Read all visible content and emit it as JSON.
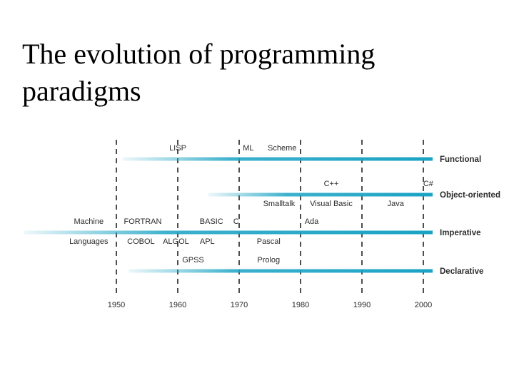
{
  "title": "The evolution of programming paradigms",
  "colors": {
    "timeline": "#1aa3c4",
    "dashed_line": "#222222",
    "text": "#2b2b2b",
    "background": "#ffffff"
  },
  "years": [
    "1950",
    "1960",
    "1970",
    "1980",
    "1990",
    "2000"
  ],
  "paradigms": [
    {
      "key": "functional",
      "label": "Functional",
      "start_year": 1951
    },
    {
      "key": "object-oriented",
      "label": "Object-oriented",
      "start_year": 1965
    },
    {
      "key": "imperative",
      "label": "Imperative",
      "start_year": 1935
    },
    {
      "key": "declarative",
      "label": "Declarative",
      "start_year": 1952
    }
  ],
  "languages": [
    {
      "name": "LISP",
      "year": 1960,
      "paradigm": "functional",
      "side": "above"
    },
    {
      "name": "ML",
      "year": 1971.5,
      "paradigm": "functional",
      "side": "above"
    },
    {
      "name": "Scheme",
      "year": 1977,
      "paradigm": "functional",
      "side": "above"
    },
    {
      "name": "C++",
      "year": 1985,
      "paradigm": "object-oriented",
      "side": "above"
    },
    {
      "name": "C#",
      "year": 2000.8,
      "paradigm": "object-oriented",
      "side": "above"
    },
    {
      "name": "Smalltalk",
      "year": 1976.5,
      "paradigm": "object-oriented",
      "side": "below"
    },
    {
      "name": "Visual Basic",
      "year": 1985,
      "paradigm": "object-oriented",
      "side": "below"
    },
    {
      "name": "Java",
      "year": 1995.5,
      "paradigm": "object-oriented",
      "side": "below"
    },
    {
      "name": "Machine",
      "year": 1945.5,
      "paradigm": "imperative",
      "side": "above"
    },
    {
      "name": "FORTRAN",
      "year": 1954.3,
      "paradigm": "imperative",
      "side": "above"
    },
    {
      "name": "BASIC",
      "year": 1965.5,
      "paradigm": "imperative",
      "side": "above"
    },
    {
      "name": "C",
      "year": 1969.5,
      "paradigm": "imperative",
      "side": "above"
    },
    {
      "name": "Ada",
      "year": 1981.8,
      "paradigm": "imperative",
      "side": "above"
    },
    {
      "name": "Languages",
      "year": 1945.5,
      "paradigm": "imperative",
      "side": "below"
    },
    {
      "name": "COBOL",
      "year": 1954,
      "paradigm": "imperative",
      "side": "below"
    },
    {
      "name": "ALGOL",
      "year": 1959.7,
      "paradigm": "imperative",
      "side": "below"
    },
    {
      "name": "APL",
      "year": 1964.8,
      "paradigm": "imperative",
      "side": "below"
    },
    {
      "name": "Pascal",
      "year": 1974.8,
      "paradigm": "imperative",
      "side": "below"
    },
    {
      "name": "GPSS",
      "year": 1962.5,
      "paradigm": "declarative",
      "side": "above"
    },
    {
      "name": "Prolog",
      "year": 1974.8,
      "paradigm": "declarative",
      "side": "above"
    }
  ]
}
